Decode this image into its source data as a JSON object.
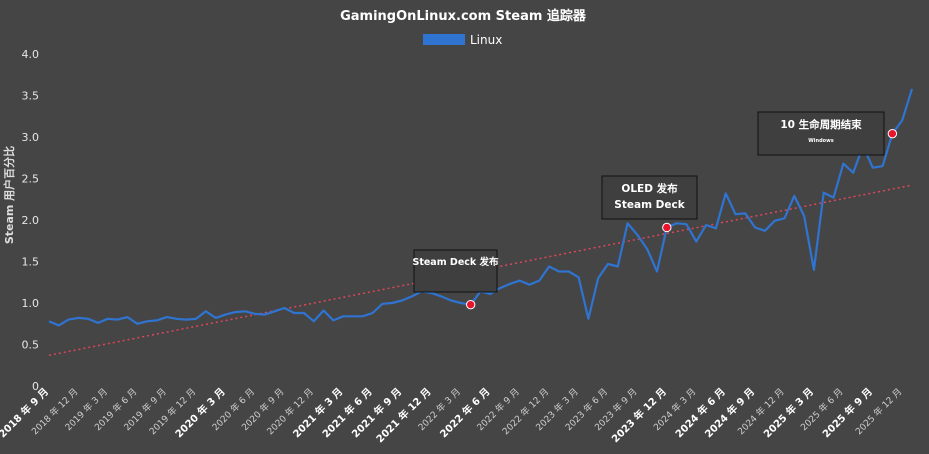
{
  "chart_data": {
    "type": "line",
    "title": "GamingOnLinux.com Steam 追踪器",
    "ylabel": "Steam 用户百分比",
    "xlabel": "",
    "ylim": [
      0,
      4.0
    ],
    "yticks": [
      "0",
      "0.5",
      "1.0",
      "1.5",
      "2.0",
      "2.5",
      "3.0",
      "3.5",
      "4.0"
    ],
    "grid": false,
    "legend_position": "top-center",
    "x_tick_labels": [
      {
        "i": 0,
        "label": "2018 年 9 月",
        "bold": true
      },
      {
        "i": 3,
        "label": "2018 年 12 月",
        "bold": false
      },
      {
        "i": 6,
        "label": "2019 年 3 月",
        "bold": false
      },
      {
        "i": 9,
        "label": "2019 年 6 月",
        "bold": false
      },
      {
        "i": 12,
        "label": "2019 年 9 月",
        "bold": false
      },
      {
        "i": 15,
        "label": "2019 年 12 月",
        "bold": false
      },
      {
        "i": 18,
        "label": "2020 年 3 月",
        "bold": true
      },
      {
        "i": 21,
        "label": "2020 年 6 月",
        "bold": false
      },
      {
        "i": 24,
        "label": "2020 年 9 月",
        "bold": false
      },
      {
        "i": 27,
        "label": "2020 年 12 月",
        "bold": false
      },
      {
        "i": 30,
        "label": "2021 年 3 月",
        "bold": true
      },
      {
        "i": 33,
        "label": "2021 年 6 月",
        "bold": true
      },
      {
        "i": 36,
        "label": "2021 年 9 月",
        "bold": true
      },
      {
        "i": 39,
        "label": "2021 年 12 月",
        "bold": true
      },
      {
        "i": 42,
        "label": "2022 年 3 月",
        "bold": false
      },
      {
        "i": 45,
        "label": "2022 年 6 月",
        "bold": true
      },
      {
        "i": 48,
        "label": "2022 年 9 月",
        "bold": false
      },
      {
        "i": 51,
        "label": "2022 年 12 月",
        "bold": false
      },
      {
        "i": 54,
        "label": "2023 年 3 月",
        "bold": false
      },
      {
        "i": 57,
        "label": "2023 年 6 月",
        "bold": false
      },
      {
        "i": 60,
        "label": "2023 年 9 月",
        "bold": false
      },
      {
        "i": 63,
        "label": "2023 年 12 月",
        "bold": true
      },
      {
        "i": 66,
        "label": "2024 年 3 月",
        "bold": false
      },
      {
        "i": 69,
        "label": "2024 年 6 月",
        "bold": true
      },
      {
        "i": 72,
        "label": "2024 年 9 月",
        "bold": true
      },
      {
        "i": 75,
        "label": "2024 年 12 月",
        "bold": false
      },
      {
        "i": 78,
        "label": "2025 年 3 月",
        "bold": true
      },
      {
        "i": 81,
        "label": "2025 年 6 月",
        "bold": false
      },
      {
        "i": 84,
        "label": "2025 年 9 月",
        "bold": true
      },
      {
        "i": 87,
        "label": "2025 年 12 月",
        "bold": false
      }
    ],
    "series": [
      {
        "name": "Linux",
        "color": "#2f74d0",
        "values": [
          0.78,
          0.73,
          0.8,
          0.82,
          0.81,
          0.76,
          0.81,
          0.8,
          0.83,
          0.75,
          0.78,
          0.79,
          0.83,
          0.81,
          0.8,
          0.81,
          0.9,
          0.82,
          0.86,
          0.89,
          0.9,
          0.87,
          0.86,
          0.9,
          0.94,
          0.88,
          0.88,
          0.78,
          0.91,
          0.79,
          0.84,
          0.84,
          0.84,
          0.88,
          0.99,
          1.0,
          1.03,
          1.08,
          1.14,
          1.12,
          1.08,
          1.03,
          1.0,
          0.98,
          1.14,
          1.11,
          1.18,
          1.23,
          1.27,
          1.22,
          1.27,
          1.44,
          1.38,
          1.38,
          1.31,
          0.81,
          1.3,
          1.47,
          1.44,
          1.96,
          1.82,
          1.65,
          1.38,
          1.91,
          1.96,
          1.95,
          1.74,
          1.94,
          1.9,
          2.32,
          2.07,
          2.08,
          1.91,
          1.87,
          1.99,
          2.02,
          2.29,
          2.05,
          1.4,
          2.33,
          2.27,
          2.68,
          2.57,
          2.89,
          2.63,
          2.65,
          3.04,
          3.2,
          3.58
        ]
      }
    ],
    "trendline": {
      "color": "#e0465a",
      "start": 0.37,
      "end": 2.42
    },
    "annotations": [
      {
        "label": "Steam Deck 发布",
        "sub": "",
        "point_index": 43
      },
      {
        "label": "OLED 发布",
        "sub": "Steam Deck",
        "point_index": 63
      },
      {
        "label": "10 生命周期结束",
        "sub": "Windows",
        "point_index": 86
      }
    ],
    "marker_color": "#e8132c"
  }
}
